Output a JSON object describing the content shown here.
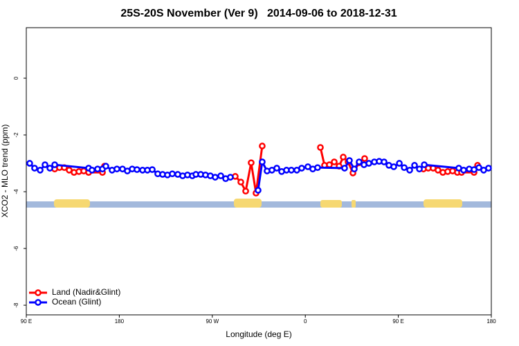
{
  "chart_data": {
    "type": "line",
    "title": "25S-20S November (Ver 9)   2014-09-06 to 2018-12-31",
    "xlabel": "Longitude (deg E)",
    "ylabel": "XCO2 - MLO trend (ppm)",
    "xlim": [
      90,
      540
    ],
    "ylim": [
      -8.34,
      1.78
    ],
    "xticks": [
      {
        "value": 90,
        "label": "90 E"
      },
      180,
      {
        "value": 270,
        "label": "90 W"
      },
      {
        "value": 360,
        "label": "0"
      },
      {
        "value": 450,
        "label": "90 E"
      },
      {
        "value": 540,
        "label": "180"
      }
    ],
    "yticks": [
      0,
      -2,
      -4,
      -6,
      -8
    ],
    "legend": "bottom-left",
    "series": [
      {
        "name": "Land (Nadir&Glint)",
        "color": "#ff0000",
        "x": [
          117.5,
          122.1,
          126.8,
          131.5,
          136.2,
          140.9,
          145.6,
          150.3,
          163.7,
          165.7,
          null,
          292.2,
          297.6,
          302.3,
          307.6,
          312.3,
          318.3,
          null,
          374.6,
          378.6,
          383.3,
          388.0,
          392.7,
          396.7,
          401.4,
          406.1,
          412.1,
          417.4,
          null,
          474.3,
          479.0,
          483.7,
          488.4,
          493.1,
          497.8,
          502.5,
          507.2,
          511.2,
          523.3,
          526.7
        ],
        "values": [
          -3.2,
          -3.15,
          -3.15,
          -3.24,
          -3.32,
          -3.29,
          -3.27,
          -3.32,
          -3.32,
          -3.1,
          null,
          -3.46,
          -3.66,
          -3.98,
          -2.98,
          -4.05,
          -2.39,
          null,
          -2.44,
          -3.07,
          -3.05,
          -2.95,
          -3.1,
          -2.78,
          -2.95,
          -3.34,
          -2.98,
          -2.83,
          null,
          -3.2,
          -3.17,
          -3.17,
          -3.24,
          -3.32,
          -3.29,
          -3.27,
          -3.32,
          -3.32,
          -3.32,
          -3.07
        ]
      },
      {
        "name": "Ocean (Glint)",
        "color": "#0000ff",
        "x": [
          93.3,
          98.0,
          103.4,
          108.1,
          112.8,
          117.5,
          150.3,
          153.6,
          159.0,
          163.7,
          167.0,
          173.0,
          177.7,
          183.1,
          187.8,
          192.5,
          197.1,
          202.5,
          207.2,
          211.9,
          217.2,
          221.9,
          226.6,
          231.3,
          236.6,
          241.3,
          246.0,
          250.7,
          254.1,
          258.8,
          263.4,
          268.1,
          272.8,
          278.2,
          282.9,
          287.5,
          null,
          314.3,
          318.3,
          323.0,
          327.7,
          332.4,
          337.1,
          341.8,
          346.5,
          351.8,
          356.5,
          362.5,
          367.2,
          371.9,
          398.0,
          402.7,
          407.4,
          412.1,
          416.8,
          421.5,
          426.8,
          431.5,
          436.2,
          440.9,
          445.6,
          451.0,
          455.7,
          461.0,
          465.7,
          470.4,
          475.1,
          508.5,
          513.2,
          518.6,
          523.3,
          528.0,
          532.6,
          537.3
        ],
        "values": [
          -3.0,
          -3.17,
          -3.24,
          -3.05,
          -3.17,
          -3.05,
          -3.17,
          -3.24,
          -3.2,
          -3.2,
          -3.1,
          -3.24,
          -3.2,
          -3.2,
          -3.27,
          -3.2,
          -3.22,
          -3.24,
          -3.24,
          -3.22,
          -3.37,
          -3.39,
          -3.41,
          -3.37,
          -3.39,
          -3.44,
          -3.41,
          -3.44,
          -3.39,
          -3.39,
          -3.41,
          -3.44,
          -3.49,
          -3.44,
          -3.54,
          -3.49,
          null,
          -3.95,
          -2.95,
          -3.27,
          -3.24,
          -3.17,
          -3.29,
          -3.24,
          -3.24,
          -3.24,
          -3.17,
          -3.12,
          -3.2,
          -3.15,
          -3.17,
          -2.9,
          -3.2,
          -2.95,
          -3.05,
          -3.0,
          -2.95,
          -2.93,
          -2.95,
          -3.07,
          -3.12,
          -3.0,
          -3.15,
          -3.24,
          -3.07,
          -3.2,
          -3.05,
          -3.17,
          -3.24,
          -3.2,
          -3.22,
          -3.15,
          -3.24,
          -3.17
        ]
      }
    ]
  }
}
